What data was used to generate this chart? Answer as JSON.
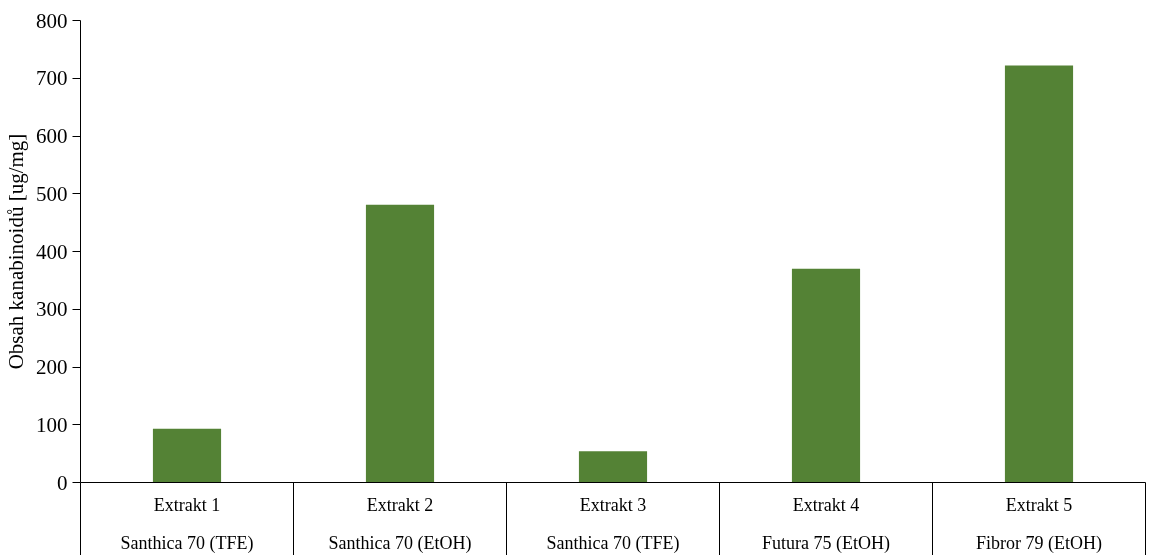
{
  "chart_data": {
    "type": "bar",
    "ylabel": "Obsah kanabinoidů [ug/mg]",
    "categories": [
      "Extrakt 1\nSanthica 70 (TFE)",
      "Extrakt 2\nSanthica 70 (EtOH)",
      "Extrakt 3\nSanthica 70 (TFE)",
      "Extrakt 4\nFutura 75 (EtOH)",
      "Extrakt 5\nFibror 79 (EtOH)"
    ],
    "values": [
      93,
      481,
      54,
      370,
      722
    ],
    "color": "#548235",
    "ylim": [
      0,
      800
    ],
    "yticks": [
      0,
      100,
      200,
      300,
      400,
      500,
      600,
      700,
      800
    ],
    "grid": false
  }
}
